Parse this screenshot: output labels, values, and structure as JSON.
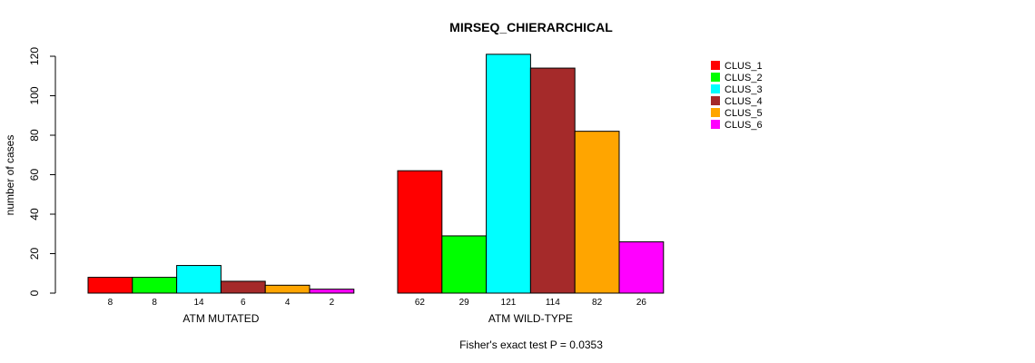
{
  "chart_data": {
    "type": "bar",
    "title": "MIRSEQ_CHIERARCHICAL",
    "ylabel": "number of cases",
    "ylim": [
      0,
      120
    ],
    "yticks": [
      0,
      20,
      40,
      60,
      80,
      100,
      120
    ],
    "legend_position": "top-right",
    "groups": [
      {
        "label": "ATM MUTATED",
        "values": [
          8,
          8,
          14,
          6,
          4,
          2
        ]
      },
      {
        "label": "ATM WILD-TYPE",
        "values": [
          62,
          29,
          121,
          114,
          82,
          26
        ]
      }
    ],
    "series": [
      {
        "name": "CLUS_1",
        "color": "#ff0000"
      },
      {
        "name": "CLUS_2",
        "color": "#00ff00"
      },
      {
        "name": "CLUS_3",
        "color": "#00ffff"
      },
      {
        "name": "CLUS_4",
        "color": "#a52a2a"
      },
      {
        "name": "CLUS_5",
        "color": "#ffa500"
      },
      {
        "name": "CLUS_6",
        "color": "#ff00ff"
      }
    ],
    "footnote": "Fisher's exact test P = 0.0353"
  }
}
